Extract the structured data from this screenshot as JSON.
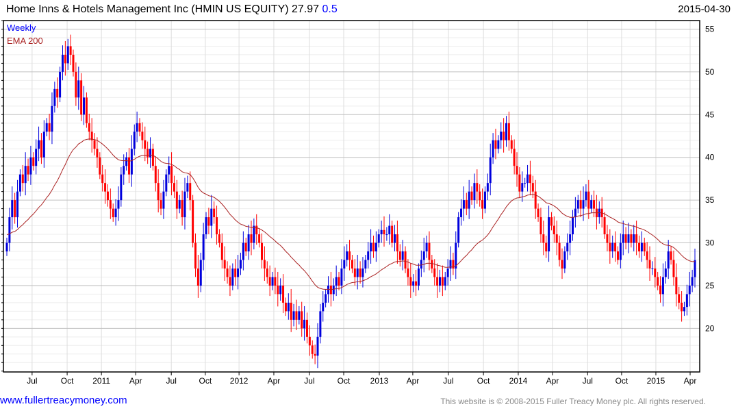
{
  "header": {
    "title": "Home Inns & Hotels Management Inc (HMIN US EQUITY) 27.97",
    "change": "0.5",
    "date": "2015-04-30"
  },
  "footer": {
    "link": "www.fullertreacymoney.com",
    "copyright": "This website is © 2008-2015 Fuller Treacy Money plc. All rights reserved."
  },
  "colors": {
    "up": "#0000dd",
    "down": "#ff0000",
    "ema": "#aa2222",
    "legend_weekly": "#0000ff",
    "legend_ema": "#aa2222"
  },
  "chart_data": {
    "type": "candlestick",
    "title": "Home Inns & Hotels Management Inc (HMIN US EQUITY)",
    "legend": [
      "Weekly",
      "EMA 200"
    ],
    "legend_position": "top-left",
    "ylim": [
      14.9,
      56
    ],
    "yticks": [
      20,
      25,
      30,
      35,
      40,
      45,
      50,
      55
    ],
    "xticks": [
      {
        "label": "Jul",
        "week": 9.5
      },
      {
        "label": "Oct",
        "week": 22.7
      },
      {
        "label": "2011",
        "week": 35.6
      },
      {
        "label": "Apr",
        "week": 48.5
      },
      {
        "label": "Jul",
        "week": 61.9
      },
      {
        "label": "Oct",
        "week": 74.7
      },
      {
        "label": "2012",
        "week": 87.4
      },
      {
        "label": "Apr",
        "week": 100.5
      },
      {
        "label": "Jul",
        "week": 113.9
      },
      {
        "label": "Oct",
        "week": 126.8
      },
      {
        "label": "2013",
        "week": 140.2
      },
      {
        "label": "Apr",
        "week": 152.8
      },
      {
        "label": "Jul",
        "week": 166.2
      },
      {
        "label": "Oct",
        "week": 179.4
      },
      {
        "label": "2014",
        "week": 192.5
      },
      {
        "label": "Apr",
        "week": 205.4
      },
      {
        "label": "Jul",
        "week": 218.6
      },
      {
        "label": "Oct",
        "week": 231.4
      },
      {
        "label": "2015",
        "week": 244.3
      },
      {
        "label": "Apr",
        "week": 257.2
      }
    ],
    "ema_start": 31,
    "ema_period_weeks": 40,
    "closes": [
      30,
      33,
      35,
      33,
      36,
      38,
      37,
      39,
      38,
      40,
      39,
      41,
      42,
      40,
      43,
      44,
      43,
      46,
      48,
      47,
      50,
      52,
      51,
      53,
      52,
      50,
      47,
      49,
      45,
      47,
      44,
      43,
      42,
      41,
      40,
      38,
      37,
      36,
      35,
      34,
      33,
      34,
      35,
      38,
      39,
      40,
      38,
      41,
      43,
      44,
      43,
      42,
      41,
      40,
      41,
      39,
      37,
      35,
      34,
      36,
      38,
      39,
      37,
      36,
      34,
      35,
      33,
      36,
      37,
      35,
      30,
      27,
      25,
      28,
      31,
      33,
      32,
      34,
      33,
      31,
      30,
      28,
      27,
      26,
      25,
      27,
      26,
      27,
      28,
      30,
      29,
      31,
      30,
      32,
      31,
      30,
      28,
      27,
      26,
      25,
      26,
      25,
      24,
      25,
      23,
      22,
      23,
      21,
      22,
      21,
      22,
      20,
      21,
      19,
      18,
      17,
      16.8,
      19,
      22,
      23,
      24,
      25,
      24,
      25,
      26,
      25,
      27,
      28,
      29,
      28,
      27,
      26,
      27,
      26,
      27,
      28,
      29,
      30,
      29,
      30,
      31,
      31.5,
      31,
      31,
      32,
      30,
      31,
      29,
      28,
      29,
      27,
      26,
      25,
      25.5,
      25,
      27,
      28,
      29,
      30,
      28,
      27,
      26,
      25,
      26,
      25,
      26,
      27,
      28,
      27,
      30,
      33,
      34,
      35,
      34,
      36,
      35,
      37,
      36,
      35,
      34,
      36,
      37,
      40,
      42,
      41,
      42,
      43,
      42,
      44,
      42,
      41,
      39,
      38,
      36,
      37,
      37,
      38,
      37,
      36,
      34,
      33,
      31,
      30,
      29,
      33,
      32,
      31,
      30,
      28,
      27,
      29,
      30,
      31,
      33,
      34,
      35,
      34,
      35,
      36,
      34,
      35,
      34,
      33,
      34,
      33,
      31,
      30,
      29,
      30,
      29,
      28,
      30,
      31,
      30,
      31,
      30,
      31,
      30,
      29,
      30,
      29,
      28,
      27,
      27,
      26,
      25,
      24,
      26,
      27,
      29,
      28,
      26,
      24,
      23,
      22,
      22.5,
      24,
      25,
      26,
      27.97
    ]
  }
}
